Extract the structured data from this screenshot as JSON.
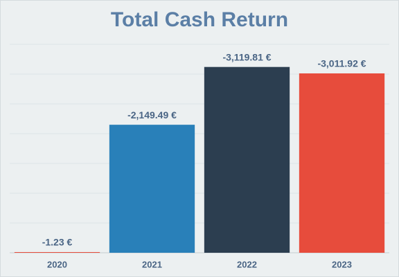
{
  "chart_data": {
    "type": "bar",
    "title": "Total Cash Return",
    "categories": [
      "2020",
      "2021",
      "2022",
      "2023"
    ],
    "values": [
      -1.23,
      -2149.49,
      -3119.81,
      -3011.92
    ],
    "value_labels": [
      "-1.23 €",
      "-2,149.49 €",
      "-3,119.81 €",
      "-3,011.92 €"
    ],
    "colors": [
      "#e74c3c",
      "#2980b9",
      "#2c3e50",
      "#e74c3c"
    ],
    "ylim": [
      0,
      -3500
    ],
    "yticks": [
      0,
      -500,
      -1000,
      -1500,
      -2000,
      -2500,
      -3000,
      -3500
    ],
    "grid": true
  }
}
